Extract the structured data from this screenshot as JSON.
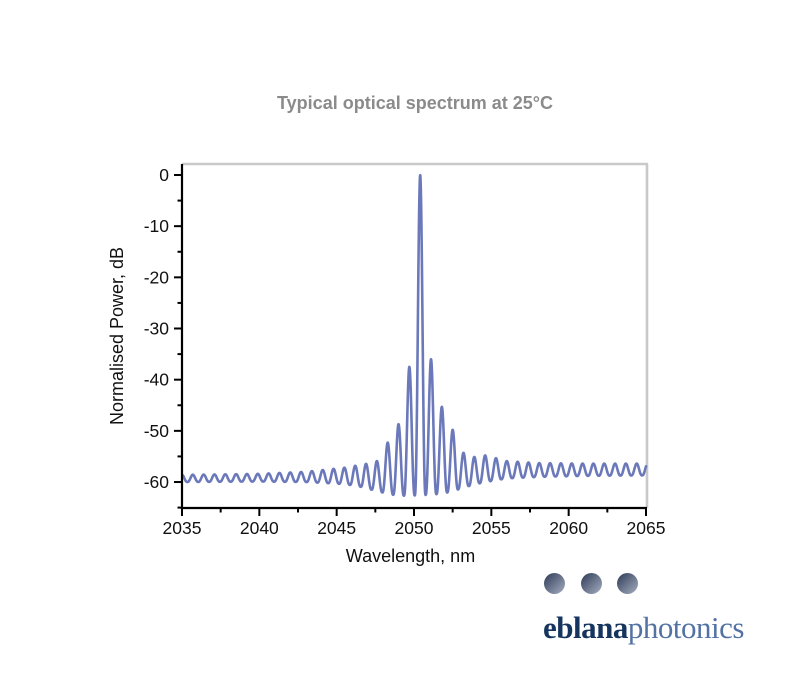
{
  "page": {
    "background": "#ffffff"
  },
  "chart_data": {
    "type": "line",
    "title": "Typical optical spectrum at 25°C",
    "xlabel": "Wavelength, nm",
    "ylabel": "Normalised Power, dB",
    "x_range": [
      2035,
      2065
    ],
    "y_range_db": [
      -65.1,
      2.2
    ],
    "x_major_ticks": [
      2035,
      2040,
      2045,
      2050,
      2055,
      2060,
      2065
    ],
    "x_minor_ticks": [
      2037.5,
      2042.5,
      2047.5,
      2052.5,
      2057.5,
      2062.5
    ],
    "y_major_ticks": [
      0,
      -10,
      -20,
      -30,
      -40,
      -50,
      -60
    ],
    "y_minor_ticks": [
      -5,
      -15,
      -25,
      -35,
      -45,
      -55,
      -65
    ],
    "grid": false,
    "legend": null,
    "line_color": "#6b79ba",
    "axis_color": "#000000",
    "frame_gray": "#c9c9c9",
    "series_name": "normalised optical power spectrum",
    "spectrum": {
      "main_peak_nm": 2050.4,
      "main_peak_db": 0,
      "mode_spacing_nm": 0.7,
      "peak_sharpness": 1.25,
      "side_mode_peaks": [
        [
          2047.6,
          -55.9
        ],
        [
          2048.3,
          -52.3
        ],
        [
          2049.0,
          -48.7
        ],
        [
          2049.7,
          -37.5
        ],
        [
          2051.1,
          -36.0
        ],
        [
          2051.8,
          -45.3
        ],
        [
          2052.5,
          -49.8
        ],
        [
          2053.2,
          -54.3
        ]
      ],
      "ripple_top_envelope": [
        [
          2035,
          -58.6
        ],
        [
          2040,
          -58.4
        ],
        [
          2043,
          -58.0
        ],
        [
          2045.5,
          -57.2
        ],
        [
          2047.0,
          -56.4
        ],
        [
          2053.9,
          -55.1
        ],
        [
          2054.6,
          -54.8
        ],
        [
          2056,
          -55.9
        ],
        [
          2058,
          -56.3
        ],
        [
          2061,
          -56.4
        ],
        [
          2065,
          -56.4
        ]
      ],
      "ripple_bottom_envelope": [
        [
          2035,
          -60.0
        ],
        [
          2040,
          -59.9
        ],
        [
          2043,
          -60.0
        ],
        [
          2045.5,
          -60.4
        ],
        [
          2046.5,
          -60.9
        ],
        [
          2047.5,
          -61.7
        ],
        [
          2048.3,
          -62.3
        ],
        [
          2049.0,
          -62.7
        ],
        [
          2050.4,
          -62.6
        ],
        [
          2051.8,
          -62.3
        ],
        [
          2052.5,
          -61.8
        ],
        [
          2053.2,
          -61.1
        ],
        [
          2054.0,
          -60.4
        ],
        [
          2055.0,
          -59.8
        ],
        [
          2056.0,
          -59.3
        ],
        [
          2058.0,
          -59.0
        ],
        [
          2061.0,
          -58.8
        ],
        [
          2065.0,
          -58.7
        ]
      ]
    }
  },
  "logo": {
    "word1": "eblana",
    "word2": "photonics",
    "word1_color": "#16355e",
    "word2_color": "#5272a3",
    "dot_count": 3
  },
  "text_colors": {
    "title_gray": "#8b8b8b",
    "axis_text": "#111111"
  }
}
